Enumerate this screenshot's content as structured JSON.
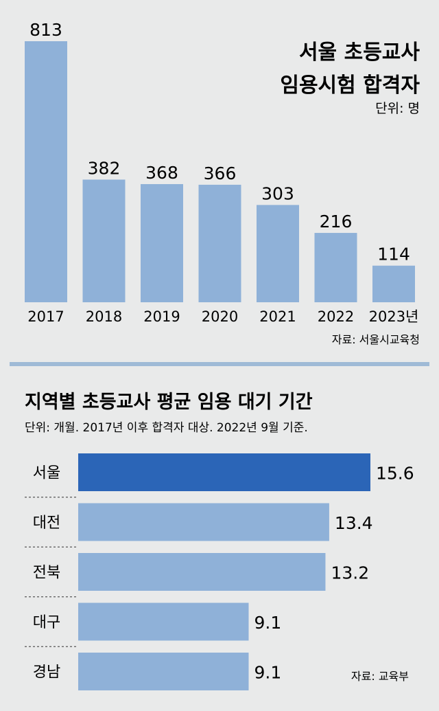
{
  "colors": {
    "background": "#e9eaea",
    "bar": "#8fb1d8",
    "highlight_bar": "#2b65b7",
    "divider": "#9fbad6",
    "row_divider": "#555555"
  },
  "chart_data": [
    {
      "type": "bar",
      "orientation": "vertical",
      "title": [
        "서울 초등교사",
        "임용시험 합격자"
      ],
      "unit": "단위: 명",
      "source": "자료: 서울시교육청",
      "categories": [
        "2017",
        "2018",
        "2019",
        "2020",
        "2021",
        "2022",
        "2023년"
      ],
      "values": [
        813,
        382,
        368,
        366,
        303,
        216,
        114
      ],
      "grid": false,
      "legend": "none"
    },
    {
      "type": "bar",
      "orientation": "horizontal",
      "title": "지역별 초등교사 평균 임용 대기 기간",
      "subtitle": "단위: 개월. 2017년 이후 합격자 대상. 2022년 9월 기준.",
      "source": "자료: 교육부",
      "categories": [
        "서울",
        "대전",
        "전북",
        "대구",
        "경남"
      ],
      "values": [
        15.6,
        13.4,
        13.2,
        9.1,
        9.1
      ],
      "value_labels": [
        "15.6",
        "13.4",
        "13.2",
        "9.1",
        "9.1"
      ],
      "highlight": "서울",
      "grid": false,
      "legend": "none"
    }
  ]
}
